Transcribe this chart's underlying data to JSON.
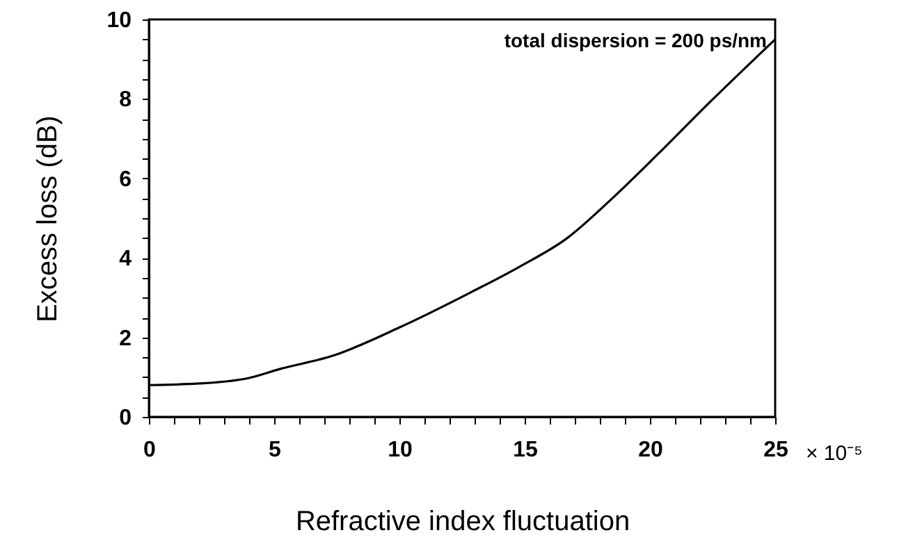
{
  "chart_data": {
    "type": "line",
    "xlabel": "Refractive index fluctuation",
    "ylabel": "Excess loss (dB)",
    "annotations": [
      "total dispersion = 200 ps/nm",
      "× 10⁻⁵"
    ],
    "x": [
      0,
      2,
      4,
      5.2,
      7.4,
      10,
      12.9,
      14.8,
      16.7,
      18.5,
      20.3,
      22.2,
      25
    ],
    "series": [
      {
        "color": "#000000",
        "values": [
          0.8,
          0.84,
          0.98,
          1.2,
          1.55,
          2.25,
          3.15,
          3.78,
          4.5,
          5.5,
          6.6,
          7.8,
          9.5
        ]
      }
    ],
    "xlim": [
      0,
      25
    ],
    "ylim": [
      0,
      10
    ],
    "xticks": [
      0,
      {
        "value": 1,
        "label": null
      },
      {
        "value": 2,
        "label": null
      },
      {
        "value": 3,
        "label": null
      },
      {
        "value": 4,
        "label": null
      },
      5,
      {
        "value": 6,
        "label": null
      },
      {
        "value": 7,
        "label": null
      },
      {
        "value": 8,
        "label": null
      },
      {
        "value": 9,
        "label": null
      },
      10,
      {
        "value": 11,
        "label": null
      },
      {
        "value": 12,
        "label": null
      },
      {
        "value": 13,
        "label": null
      },
      {
        "value": 14,
        "label": null
      },
      15,
      {
        "value": 16,
        "label": null
      },
      {
        "value": 17,
        "label": null
      },
      {
        "value": 18,
        "label": null
      },
      {
        "value": 19,
        "label": null
      },
      20,
      {
        "value": 21,
        "label": null
      },
      {
        "value": 22,
        "label": null
      },
      {
        "value": 23,
        "label": null
      },
      {
        "value": 24,
        "label": null
      },
      25
    ],
    "yticks": [
      0,
      {
        "value": 0.5,
        "label": null
      },
      {
        "value": 1,
        "label": null
      },
      {
        "value": 1.5,
        "label": null
      },
      2,
      {
        "value": 2.5,
        "label": null
      },
      {
        "value": 3,
        "label": null
      },
      {
        "value": 3.5,
        "label": null
      },
      4,
      {
        "value": 4.5,
        "label": null
      },
      {
        "value": 5,
        "label": null
      },
      {
        "value": 5.5,
        "label": null
      },
      6,
      {
        "value": 6.5,
        "label": null
      },
      {
        "value": 7,
        "label": null
      },
      {
        "value": 7.5,
        "label": null
      },
      8,
      {
        "value": 8.5,
        "label": null
      },
      {
        "value": 9,
        "label": null
      },
      {
        "value": 9.5,
        "label": null
      },
      10
    ],
    "grid": false,
    "marker": "none",
    "line_style": "solid"
  }
}
